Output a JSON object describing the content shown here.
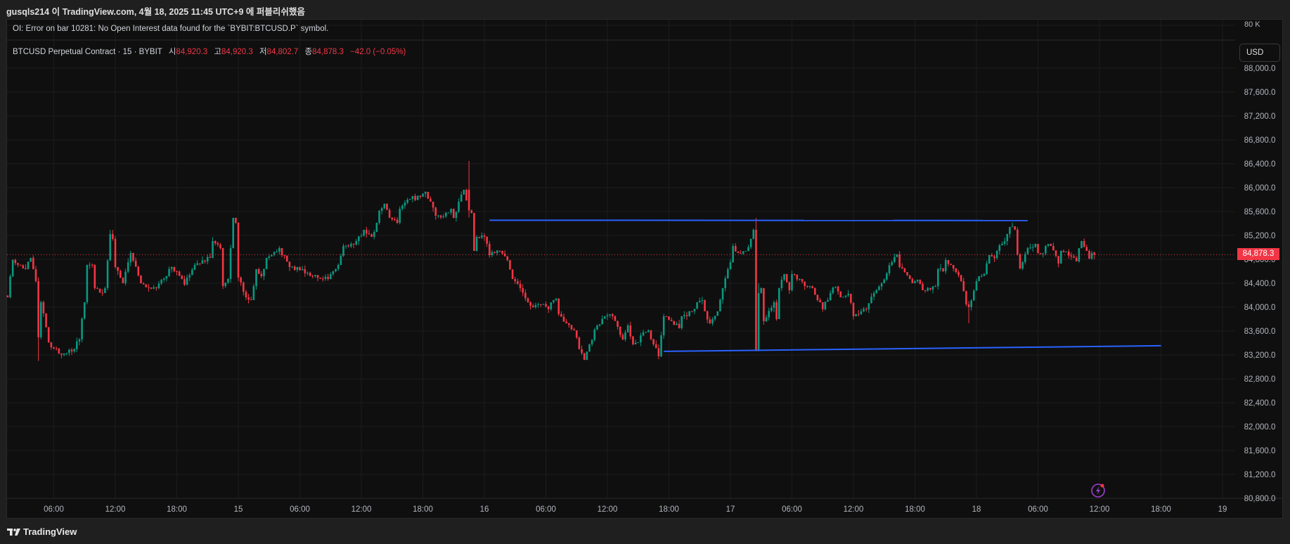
{
  "header": {
    "publish_line": "gusqls214 이 TradingView.com, 4월 18, 2025 11:45 UTC+9 에 퍼블리쉬했음"
  },
  "oi_pane": {
    "error": "OI: Error on bar 10281: No Open Interest data found for the `BYBIT:BTCUSD.P` symbol.",
    "scale_label": "80 K"
  },
  "legend": {
    "symbol": "BTCUSD Perpetual Contract · 15 · BYBIT",
    "open_label": "시",
    "open": "84,920.3",
    "high_label": "고",
    "high": "84,920.3",
    "low_label": "저",
    "low": "84,802.7",
    "close_label": "종",
    "close": "84,878.3",
    "change": "−42.0 (−0.05%)"
  },
  "price_axis": {
    "currency": "USD",
    "last_price": "84,878.3"
  },
  "footer": {
    "brand": "TradingView"
  },
  "icons": {
    "alert": "lightning-icon",
    "logo": "tradingview-logo"
  },
  "colors": {
    "up": "#089981",
    "down": "#f23645",
    "trend_line": "#2962ff",
    "alert_icon": "#9c3fd1",
    "background": "#0f0f0f"
  },
  "chart_data": {
    "type": "candlestick",
    "symbol": "BTCUSD Perpetual Contract",
    "interval": "15",
    "ylim": [
      80800,
      88000
    ],
    "grid": true,
    "last_price": 84878.3,
    "price_ticks": [
      "88,000.0",
      "87,600.0",
      "87,200.0",
      "86,800.0",
      "86,400.0",
      "86,000.0",
      "85,600.0",
      "85,200.0",
      "84,800.0",
      "84,400.0",
      "84,000.0",
      "83,600.0",
      "83,200.0",
      "82,800.0",
      "82,400.0",
      "82,000.0",
      "81,600.0",
      "81,200.0",
      "80,800.0"
    ],
    "time_ticks": [
      {
        "t": "04-14 06:00",
        "label": "06:00"
      },
      {
        "t": "04-14 12:00",
        "label": "12:00"
      },
      {
        "t": "04-14 18:00",
        "label": "18:00"
      },
      {
        "t": "04-15 00:00",
        "label": "15"
      },
      {
        "t": "04-15 06:00",
        "label": "06:00"
      },
      {
        "t": "04-15 12:00",
        "label": "12:00"
      },
      {
        "t": "04-15 18:00",
        "label": "18:00"
      },
      {
        "t": "04-16 00:00",
        "label": "16"
      },
      {
        "t": "04-16 06:00",
        "label": "06:00"
      },
      {
        "t": "04-16 12:00",
        "label": "12:00"
      },
      {
        "t": "04-16 18:00",
        "label": "18:00"
      },
      {
        "t": "04-17 00:00",
        "label": "17"
      },
      {
        "t": "04-17 06:00",
        "label": "06:00"
      },
      {
        "t": "04-17 12:00",
        "label": "12:00"
      },
      {
        "t": "04-17 18:00",
        "label": "18:00"
      },
      {
        "t": "04-18 00:00",
        "label": "18"
      },
      {
        "t": "04-18 06:00",
        "label": "06:00"
      },
      {
        "t": "04-18 12:00",
        "label": "12:00"
      },
      {
        "t": "04-18 18:00",
        "label": "18:00"
      },
      {
        "t": "04-19 00:00",
        "label": "19"
      }
    ],
    "close_path": [
      [
        "04-14 01:30",
        84166
      ],
      [
        "04-14 02:00",
        84790
      ],
      [
        "04-14 03:15",
        84636
      ],
      [
        "04-14 03:45",
        84825
      ],
      [
        "04-14 04:15",
        84436
      ],
      [
        "04-14 04:30",
        83495
      ],
      [
        "04-14 04:45",
        84083
      ],
      [
        "04-14 05:30",
        83413
      ],
      [
        "04-14 06:30",
        83225
      ],
      [
        "04-14 07:45",
        83260
      ],
      [
        "04-14 08:30",
        83460
      ],
      [
        "04-14 09:00",
        84083
      ],
      [
        "04-14 09:15",
        84706
      ],
      [
        "04-14 09:45",
        84706
      ],
      [
        "04-14 10:00",
        84318
      ],
      [
        "04-14 10:45",
        84236
      ],
      [
        "04-14 11:00",
        84318
      ],
      [
        "04-14 11:30",
        85224
      ],
      [
        "04-14 11:45",
        85142
      ],
      [
        "04-14 12:00",
        84671
      ],
      [
        "04-14 12:45",
        84400
      ],
      [
        "04-14 13:30",
        84906
      ],
      [
        "04-14 14:30",
        84400
      ],
      [
        "04-14 16:00",
        84318
      ],
      [
        "04-14 17:30",
        84671
      ],
      [
        "04-14 18:30",
        84471
      ],
      [
        "04-14 18:45",
        84377
      ],
      [
        "04-14 19:45",
        84706
      ],
      [
        "04-14 21:15",
        84825
      ],
      [
        "04-14 21:30",
        85106
      ],
      [
        "04-14 22:15",
        84988
      ],
      [
        "04-14 22:30",
        84353
      ],
      [
        "04-14 23:00",
        84471
      ],
      [
        "04-14 23:30",
        85494
      ],
      [
        "04-14 23:45",
        85412
      ],
      [
        "04-15 00:00",
        84495
      ],
      [
        "04-15 00:45",
        84165
      ],
      [
        "04-15 01:15",
        84118
      ],
      [
        "04-15 01:45",
        84636
      ],
      [
        "04-15 02:15",
        84518
      ],
      [
        "04-15 02:45",
        84825
      ],
      [
        "04-15 04:00",
        84988
      ],
      [
        "04-15 05:00",
        84671
      ],
      [
        "04-15 06:15",
        84636
      ],
      [
        "04-15 07:15",
        84518
      ],
      [
        "04-15 08:45",
        84471
      ],
      [
        "04-15 09:15",
        84600
      ],
      [
        "04-15 09:45",
        84706
      ],
      [
        "04-15 10:15",
        85024
      ],
      [
        "04-15 11:00",
        85059
      ],
      [
        "04-15 11:30",
        85106
      ],
      [
        "04-15 12:15",
        85294
      ],
      [
        "04-15 13:00",
        85177
      ],
      [
        "04-15 13:30",
        85412
      ],
      [
        "04-15 13:45",
        85612
      ],
      [
        "04-15 14:15",
        85730
      ],
      [
        "04-15 14:45",
        85494
      ],
      [
        "04-15 15:30",
        85412
      ],
      [
        "04-15 15:45",
        85647
      ],
      [
        "04-15 16:45",
        85812
      ],
      [
        "04-15 17:45",
        85847
      ],
      [
        "04-15 18:15",
        85930
      ],
      [
        "04-15 18:45",
        85765
      ],
      [
        "04-15 19:15",
        85530
      ],
      [
        "04-15 20:00",
        85518
      ],
      [
        "04-15 20:45",
        85647
      ],
      [
        "04-15 21:00",
        85494
      ],
      [
        "04-15 21:30",
        85765
      ],
      [
        "04-15 22:00",
        85965
      ],
      [
        "04-15 22:30",
        85620
      ],
      [
        "04-15 22:45",
        85577
      ],
      [
        "04-15 23:00",
        84941
      ],
      [
        "04-15 23:15",
        85177
      ],
      [
        "04-16 00:00",
        85177
      ],
      [
        "04-16 00:30",
        84871
      ],
      [
        "04-16 01:00",
        84906
      ],
      [
        "04-16 01:30",
        84941
      ],
      [
        "04-16 02:15",
        84788
      ],
      [
        "04-16 02:45",
        84471
      ],
      [
        "04-16 03:30",
        84318
      ],
      [
        "04-16 04:15",
        84083
      ],
      [
        "04-16 04:45",
        84000
      ],
      [
        "04-16 05:30",
        84047
      ],
      [
        "04-16 06:15",
        83965
      ],
      [
        "04-16 06:45",
        84118
      ],
      [
        "04-16 07:00",
        84141
      ],
      [
        "04-16 07:15",
        83883
      ],
      [
        "04-16 08:00",
        83730
      ],
      [
        "04-16 08:45",
        83612
      ],
      [
        "04-16 09:15",
        83295
      ],
      [
        "04-16 09:45",
        83118
      ],
      [
        "04-16 10:15",
        83377
      ],
      [
        "04-16 11:00",
        83694
      ],
      [
        "04-16 11:45",
        83847
      ],
      [
        "04-16 12:15",
        83883
      ],
      [
        "04-16 13:00",
        83671
      ],
      [
        "04-16 13:30",
        83459
      ],
      [
        "04-16 14:00",
        83694
      ],
      [
        "04-16 14:30",
        83377
      ],
      [
        "04-16 15:00",
        83412
      ],
      [
        "04-16 15:30",
        83577
      ],
      [
        "04-16 16:00",
        83612
      ],
      [
        "04-16 16:30",
        83377
      ],
      [
        "04-16 17:00",
        83177
      ],
      [
        "04-16 17:30",
        83847
      ],
      [
        "04-16 18:15",
        83765
      ],
      [
        "04-16 19:00",
        83647
      ],
      [
        "04-16 19:15",
        83847
      ],
      [
        "04-16 20:15",
        83930
      ],
      [
        "04-16 20:45",
        84083
      ],
      [
        "04-16 21:15",
        84118
      ],
      [
        "04-16 21:30",
        83930
      ],
      [
        "04-16 22:00",
        83730
      ],
      [
        "04-16 22:45",
        83930
      ],
      [
        "04-16 23:15",
        84318
      ],
      [
        "04-16 23:45",
        84636
      ],
      [
        "04-17 00:00",
        84753
      ],
      [
        "04-17 00:15",
        85024
      ],
      [
        "04-17 00:45",
        84906
      ],
      [
        "04-17 01:30",
        84941
      ],
      [
        "04-17 02:00",
        85142
      ],
      [
        "04-17 02:15",
        85294
      ],
      [
        "04-17 02:30",
        83283
      ],
      [
        "04-17 02:45",
        84236
      ],
      [
        "04-17 03:00",
        84318
      ],
      [
        "04-17 03:15",
        83765
      ],
      [
        "04-17 04:15",
        84083
      ],
      [
        "04-17 04:30",
        83800
      ],
      [
        "04-17 04:45",
        84318
      ],
      [
        "04-17 05:15",
        84553
      ],
      [
        "04-17 05:45",
        84283
      ],
      [
        "04-17 06:00",
        84553
      ],
      [
        "04-17 06:45",
        84471
      ],
      [
        "04-17 07:15",
        84353
      ],
      [
        "04-17 08:00",
        84318
      ],
      [
        "04-17 08:30",
        84118
      ],
      [
        "04-17 08:45",
        84083
      ],
      [
        "04-17 09:00",
        83965
      ],
      [
        "04-17 09:45",
        84236
      ],
      [
        "04-17 10:15",
        84341
      ],
      [
        "04-17 10:45",
        84165
      ],
      [
        "04-17 11:30",
        84224
      ],
      [
        "04-17 12:00",
        83847
      ],
      [
        "04-17 12:30",
        83883
      ],
      [
        "04-17 13:15",
        83965
      ],
      [
        "04-17 14:00",
        84236
      ],
      [
        "04-17 14:45",
        84400
      ],
      [
        "04-17 15:45",
        84753
      ],
      [
        "04-17 16:15",
        84883
      ],
      [
        "04-17 16:30",
        84671
      ],
      [
        "04-17 17:00",
        84588
      ],
      [
        "04-17 17:45",
        84400
      ],
      [
        "04-17 18:15",
        84459
      ],
      [
        "04-17 18:45",
        84283
      ],
      [
        "04-17 19:30",
        84294
      ],
      [
        "04-17 20:00",
        84350
      ],
      [
        "04-17 20:15",
        84636
      ],
      [
        "04-17 20:45",
        84600
      ],
      [
        "04-17 21:00",
        84788
      ],
      [
        "04-17 21:30",
        84706
      ],
      [
        "04-17 22:00",
        84588
      ],
      [
        "04-17 22:30",
        84436
      ],
      [
        "04-17 23:00",
        84047
      ],
      [
        "04-17 23:15",
        84000
      ],
      [
        "04-18 00:00",
        84436
      ],
      [
        "04-18 00:15",
        84518
      ],
      [
        "04-18 00:45",
        84553
      ],
      [
        "04-18 01:15",
        84871
      ],
      [
        "04-18 01:45",
        84820
      ],
      [
        "04-18 02:00",
        84941
      ],
      [
        "04-18 02:30",
        85059
      ],
      [
        "04-18 03:00",
        85224
      ],
      [
        "04-18 03:15",
        85341
      ],
      [
        "04-18 03:45",
        85300
      ],
      [
        "04-18 04:00",
        84883
      ],
      [
        "04-18 04:15",
        84647
      ],
      [
        "04-18 04:30",
        84753
      ],
      [
        "04-18 05:00",
        84988
      ],
      [
        "04-18 05:45",
        85059
      ],
      [
        "04-18 06:00",
        84906
      ],
      [
        "04-18 06:30",
        84900
      ],
      [
        "04-18 06:45",
        85024
      ],
      [
        "04-18 07:15",
        85024
      ],
      [
        "04-18 07:30",
        84950
      ],
      [
        "04-18 08:00",
        84730
      ],
      [
        "04-18 08:15",
        84941
      ],
      [
        "04-18 08:45",
        84930
      ],
      [
        "04-18 09:30",
        84825
      ],
      [
        "04-18 09:45",
        84765
      ],
      [
        "04-18 10:00",
        84988
      ],
      [
        "04-18 10:15",
        85106
      ],
      [
        "04-18 10:45",
        84941
      ],
      [
        "04-18 11:00",
        84812
      ],
      [
        "04-18 11:15",
        84906
      ],
      [
        "04-18 11:30",
        84878.3
      ]
    ],
    "notable_bars": [
      {
        "t": "04-14 04:30",
        "o": 84436,
        "h": 84500,
        "l": 83100,
        "c": 83495
      },
      {
        "t": "04-15 22:30",
        "o": 85965,
        "h": 86447,
        "l": 85500,
        "c": 85620
      },
      {
        "t": "04-17 02:30",
        "o": 85294,
        "h": 85494,
        "l": 83260,
        "c": 83283
      },
      {
        "t": "04-17 02:45",
        "o": 83283,
        "h": 84400,
        "l": 83260,
        "c": 84236
      },
      {
        "t": "04-17 23:15",
        "o": 84047,
        "h": 84100,
        "l": 83730,
        "c": 84000
      },
      {
        "t": "04-18 11:30",
        "o": 84920.3,
        "h": 84920.3,
        "l": 84802.7,
        "c": 84878.3
      }
    ],
    "trend_lines": [
      {
        "from": [
          "04-16 00:30",
          85455
        ],
        "to": [
          "04-18 05:00",
          85450
        ]
      },
      {
        "from": [
          "04-16 17:30",
          83260
        ],
        "to": [
          "04-18 18:00",
          83354
        ]
      }
    ]
  }
}
